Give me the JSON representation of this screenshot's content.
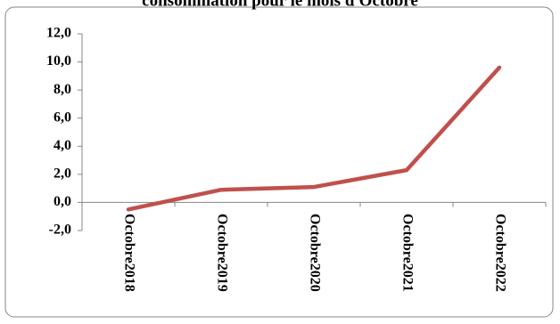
{
  "chart_data": {
    "type": "line",
    "title": "consommation pour le mois d'Octobre",
    "categories": [
      "Octobre2018",
      "Octobre2019",
      "Octobre2020",
      "Octobre2021",
      "Octobre2022"
    ],
    "series": [
      {
        "name": "consommation",
        "color": "#c0504d",
        "values": [
          -0.5,
          0.9,
          1.1,
          2.3,
          9.6
        ]
      }
    ],
    "ylim": [
      -2,
      12
    ],
    "yticks": [
      {
        "value": -2,
        "label": "-2,0"
      },
      {
        "value": 0,
        "label": "0,0"
      },
      {
        "value": 2,
        "label": "2,0"
      },
      {
        "value": 4,
        "label": "4,0"
      },
      {
        "value": 6,
        "label": "6,0"
      },
      {
        "value": 8,
        "label": "8,0"
      },
      {
        "value": 10,
        "label": "10,0"
      },
      {
        "value": 12,
        "label": "12,0"
      }
    ],
    "grid": false
  }
}
